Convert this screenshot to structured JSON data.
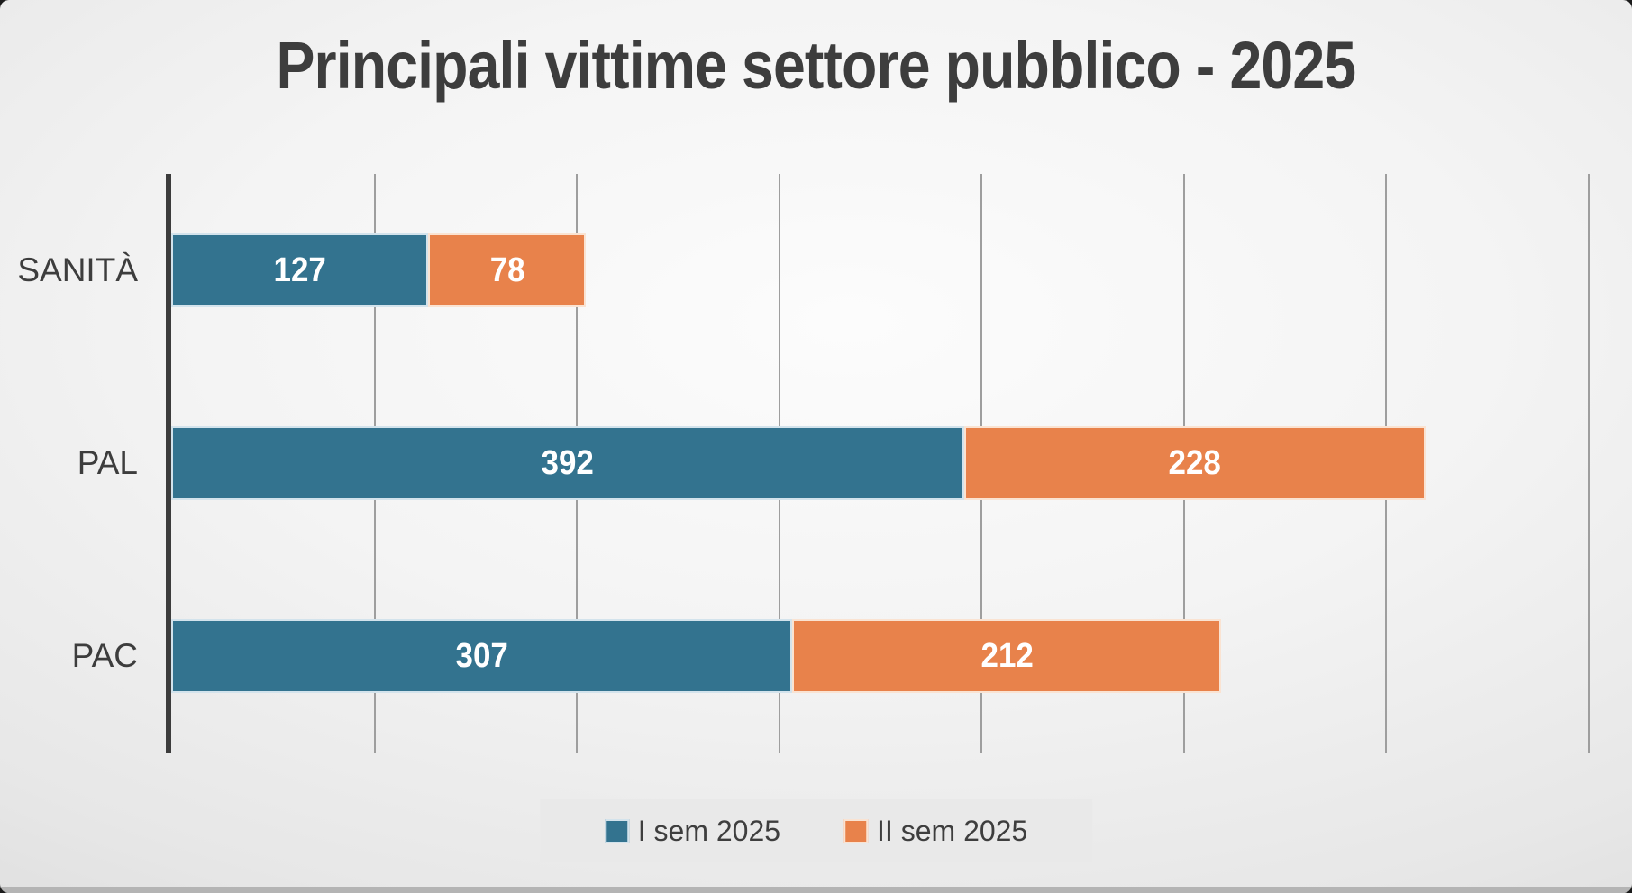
{
  "title": "Principali vittime settore pubblico - 2025",
  "chart_data": {
    "type": "bar",
    "orientation": "horizontal",
    "stacked": true,
    "title": "Principali vittime settore pubblico - 2025",
    "categories": [
      "SANITÀ",
      "PAL",
      "PAC"
    ],
    "series": [
      {
        "name": "I sem 2025",
        "values": [
          127,
          392,
          307
        ],
        "color": "#33738F",
        "border_color": "#d3e3ec"
      },
      {
        "name": "II sem 2025",
        "values": [
          78,
          228,
          212
        ],
        "color": "#E8824B",
        "border_color": "#fae3d2"
      }
    ],
    "xlabel": "",
    "ylabel": "",
    "xlim": [
      0,
      722
    ],
    "gridline_interval": 100,
    "grid": true,
    "legend_position": "bottom",
    "data_labels": "inside-center",
    "axis_line_color": "#3c3c3c",
    "gridline_color": "#9e9e9e",
    "label_color": "#3d3d3d",
    "value_label_color": "#ffffff"
  }
}
